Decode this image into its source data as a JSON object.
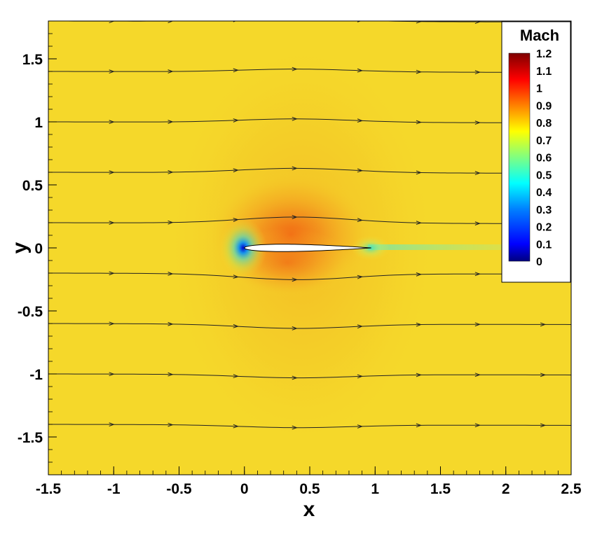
{
  "chart_data": {
    "type": "heatmap",
    "xlabel": "x",
    "ylabel": "y",
    "xlim": [
      -1.5,
      2.5
    ],
    "ylim": [
      -1.8,
      1.8
    ],
    "x_ticks": [
      "-1.5",
      "-1",
      "-0.5",
      "0",
      "0.5",
      "1",
      "1.5",
      "2",
      "2.5"
    ],
    "y_ticks": [
      "1.5",
      "1",
      "0.5",
      "0",
      "-0.5",
      "-1",
      "-1.5"
    ],
    "colorbar": {
      "title": "Mach",
      "range": [
        0,
        1.2
      ],
      "labels": [
        "1.2",
        "1.1",
        "1",
        "0.9",
        "0.8",
        "0.7",
        "0.6",
        "0.5",
        "0.4",
        "0.3",
        "0.2",
        "0.1",
        "0"
      ],
      "colormap": [
        "#00007f",
        "#0000ff",
        "#0080ff",
        "#00ffff",
        "#80ff80",
        "#ffff00",
        "#ff8000",
        "#ff0000",
        "#7f0000"
      ]
    },
    "freestream_color": "#f5d82a",
    "streamline_y0": [
      1.8,
      1.4,
      1.0,
      0.6,
      0.2,
      -0.2,
      -0.6,
      -1.0,
      -1.4
    ],
    "airfoil": {
      "leading_edge_x": 0.0,
      "trailing_edge_x": 0.97,
      "max_thickness": 0.06
    }
  }
}
